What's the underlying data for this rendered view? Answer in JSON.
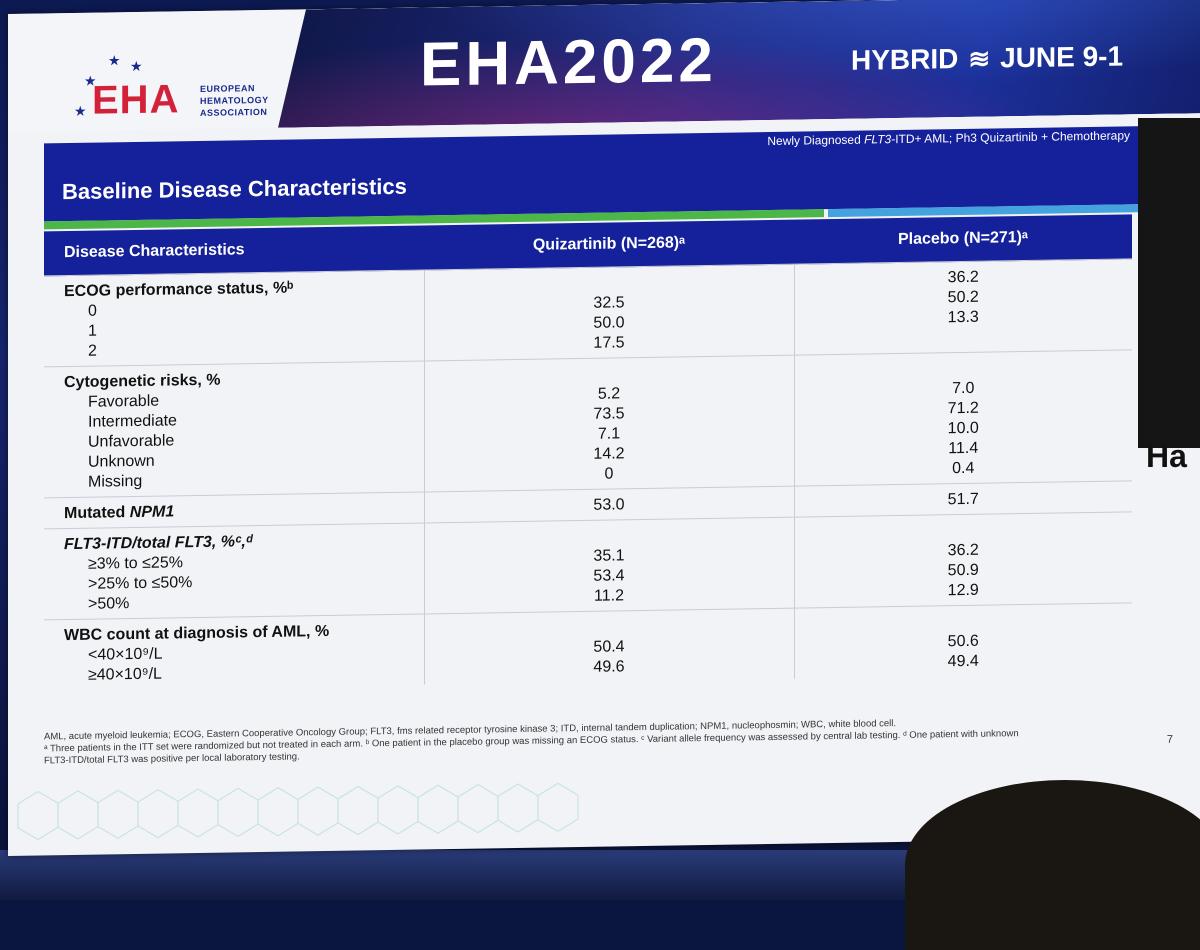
{
  "banner": {
    "logo_text": "EHA",
    "logo_sub": "EUROPEAN HEMATOLOGY ASSOCIATION",
    "conference": "EHA2022",
    "format": "HYBRID",
    "dates": "JUNE 9-1"
  },
  "slide": {
    "subtitle_pre": "Newly Diagnosed ",
    "subtitle_gene": "FLT3",
    "subtitle_post": "-ITD+ AML; Ph3 Quizartinib + Chemotherapy",
    "title": "Baseline Disease Characteristics",
    "page_number": "7"
  },
  "table": {
    "headers": [
      "Disease Characteristics",
      "Quizartinib (N=268)ᵃ",
      "Placebo (N=271)ᵃ"
    ],
    "groups": [
      {
        "label": "ECOG performance status, %ᵇ",
        "rows": [
          {
            "label": "0",
            "quizartinib": "32.5",
            "placebo": "36.2"
          },
          {
            "label": "1",
            "quizartinib": "50.0",
            "placebo": "50.2"
          },
          {
            "label": "2",
            "quizartinib": "17.5",
            "placebo": "13.3"
          }
        ]
      },
      {
        "label": "Cytogenetic risks, %",
        "rows": [
          {
            "label": "Favorable",
            "quizartinib": "5.2",
            "placebo": "7.0"
          },
          {
            "label": "Intermediate",
            "quizartinib": "73.5",
            "placebo": "71.2"
          },
          {
            "label": "Unfavorable",
            "quizartinib": "7.1",
            "placebo": "10.0"
          },
          {
            "label": "Unknown",
            "quizartinib": "14.2",
            "placebo": "11.4"
          },
          {
            "label": "Missing",
            "quizartinib": "0",
            "placebo": "0.4"
          }
        ]
      },
      {
        "label": "Mutated NPM1",
        "quizartinib": "53.0",
        "placebo": "51.7"
      },
      {
        "label": "FLT3-ITD/total FLT3, %ᶜ,ᵈ",
        "rows": [
          {
            "label": "≥3% to ≤25%",
            "quizartinib": "35.1",
            "placebo": "36.2"
          },
          {
            "label": ">25% to ≤50%",
            "quizartinib": "53.4",
            "placebo": "50.9"
          },
          {
            "label": ">50%",
            "quizartinib": "11.2",
            "placebo": "12.9"
          }
        ]
      },
      {
        "label": "WBC count at diagnosis of AML, %",
        "rows": [
          {
            "label": "<40×10⁹/L",
            "quizartinib": "50.4",
            "placebo": "50.6"
          },
          {
            "label": "≥40×10⁹/L",
            "quizartinib": "49.6",
            "placebo": "49.4"
          }
        ]
      }
    ]
  },
  "footnotes": {
    "line1": "AML, acute myeloid leukemia; ECOG, Eastern Cooperative Oncology Group; FLT3, fms related receptor tyrosine kinase 3; ITD, internal tandem duplication; NPM1, nucleophosmin; WBC, white blood cell.",
    "line2": "ᵃ Three patients in the ITT set were randomized but not treated in each arm. ᵇ One patient in the placebo group was missing an ECOG status. ᶜ Variant allele frequency was assessed by central lab testing. ᵈ One patient with unknown",
    "line3": "FLT3-ITD/total FLT3 was positive per local laboratory testing."
  },
  "side_screen": {
    "caption": "Ha"
  },
  "colors": {
    "header_blue": "#15219a",
    "stripe_green": "#4cb648",
    "stripe_blue": "#44a3df",
    "eha_red": "#d4213a"
  }
}
